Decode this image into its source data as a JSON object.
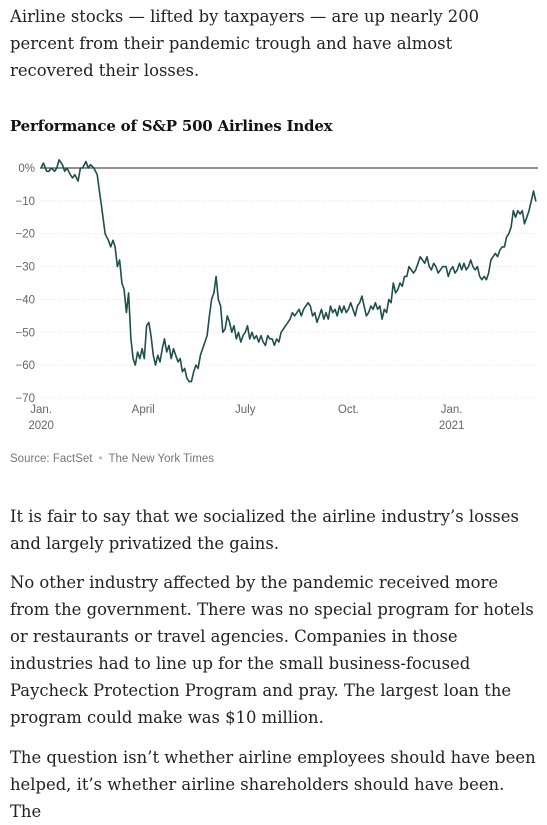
{
  "paragraphs": {
    "intro": "Airline stocks — lifted by taxpayers — are up nearly 200 percent from their pandemic trough and have almost recovered their losses.",
    "p1": "It is fair to say that we socialized the airline industry’s losses and largely privatized the gains.",
    "p2": "No other industry affected by the pandemic received more from the government. There was no special program for hotels or restaurants or travel agencies. Companies in those industries had to line up for the small business-focused Paycheck Protection Program and pray. The largest loan the program could make was $10 million.",
    "p3": "The question isn’t whether airline employees should have been helped, it’s whether airline shareholders should have been. The"
  },
  "credits": {
    "source": "Source: FactSet",
    "publisher": "The New York Times"
  },
  "chart_data": {
    "type": "line",
    "title": "Performance of S&P 500 Airlines Index",
    "xlabel": "",
    "ylabel": "",
    "ylim": [
      -70,
      0
    ],
    "y_ticks": [
      {
        "value": 0,
        "label": "0%"
      },
      {
        "value": -10,
        "label": "−10"
      },
      {
        "value": -20,
        "label": "−20"
      },
      {
        "value": -30,
        "label": "−30"
      },
      {
        "value": -40,
        "label": "−40"
      },
      {
        "value": -50,
        "label": "−50"
      },
      {
        "value": -60,
        "label": "−60"
      },
      {
        "value": -70,
        "label": "−70"
      }
    ],
    "x_ticks": [
      {
        "date": "2020-01-01",
        "label": "Jan.",
        "sublabel": "2020"
      },
      {
        "date": "2020-04-01",
        "label": "April",
        "sublabel": ""
      },
      {
        "date": "2020-07-01",
        "label": "July",
        "sublabel": ""
      },
      {
        "date": "2020-10-01",
        "label": "Oct.",
        "sublabel": ""
      },
      {
        "date": "2021-01-01",
        "label": "Jan.",
        "sublabel": "2021"
      }
    ],
    "xlim": [
      "2019-12-31",
      "2021-03-19"
    ],
    "grid": "horizontal",
    "zero_line": true,
    "line_color": "#1e4f4b",
    "series": [
      {
        "values": [
          {
            "x": "2020-01-01",
            "y": 0
          },
          {
            "x": "2020-01-03",
            "y": 1.5
          },
          {
            "x": "2020-01-06",
            "y": -1
          },
          {
            "x": "2020-01-08",
            "y": -1
          },
          {
            "x": "2020-01-10",
            "y": 0
          },
          {
            "x": "2020-01-13",
            "y": -1
          },
          {
            "x": "2020-01-15",
            "y": 0
          },
          {
            "x": "2020-01-17",
            "y": 2.5
          },
          {
            "x": "2020-01-20",
            "y": 1
          },
          {
            "x": "2020-01-22",
            "y": -1
          },
          {
            "x": "2020-01-24",
            "y": 0
          },
          {
            "x": "2020-01-27",
            "y": -2
          },
          {
            "x": "2020-01-29",
            "y": -3
          },
          {
            "x": "2020-01-31",
            "y": -2
          },
          {
            "x": "2020-02-03",
            "y": -4
          },
          {
            "x": "2020-02-05",
            "y": 0
          },
          {
            "x": "2020-02-07",
            "y": 0
          },
          {
            "x": "2020-02-10",
            "y": 2
          },
          {
            "x": "2020-02-12",
            "y": 0
          },
          {
            "x": "2020-02-14",
            "y": 1
          },
          {
            "x": "2020-02-17",
            "y": 0
          },
          {
            "x": "2020-02-20",
            "y": -2
          },
          {
            "x": "2020-02-22",
            "y": -7
          },
          {
            "x": "2020-02-24",
            "y": -12
          },
          {
            "x": "2020-02-27",
            "y": -20
          },
          {
            "x": "2020-03-01",
            "y": -22
          },
          {
            "x": "2020-03-03",
            "y": -24
          },
          {
            "x": "2020-03-05",
            "y": -22
          },
          {
            "x": "2020-03-07",
            "y": -24
          },
          {
            "x": "2020-03-09",
            "y": -30
          },
          {
            "x": "2020-03-11",
            "y": -28
          },
          {
            "x": "2020-03-13",
            "y": -35
          },
          {
            "x": "2020-03-15",
            "y": -37
          },
          {
            "x": "2020-03-17",
            "y": -44
          },
          {
            "x": "2020-03-19",
            "y": -38
          },
          {
            "x": "2020-03-21",
            "y": -52
          },
          {
            "x": "2020-03-23",
            "y": -58
          },
          {
            "x": "2020-03-25",
            "y": -60
          },
          {
            "x": "2020-03-27",
            "y": -56
          },
          {
            "x": "2020-03-29",
            "y": -58
          },
          {
            "x": "2020-03-31",
            "y": -55
          },
          {
            "x": "2020-04-02",
            "y": -58
          },
          {
            "x": "2020-04-04",
            "y": -48
          },
          {
            "x": "2020-04-06",
            "y": -47
          },
          {
            "x": "2020-04-08",
            "y": -51
          },
          {
            "x": "2020-04-10",
            "y": -57
          },
          {
            "x": "2020-04-12",
            "y": -60
          },
          {
            "x": "2020-04-14",
            "y": -57
          },
          {
            "x": "2020-04-16",
            "y": -59
          },
          {
            "x": "2020-04-18",
            "y": -55
          },
          {
            "x": "2020-04-20",
            "y": -52
          },
          {
            "x": "2020-04-22",
            "y": -56
          },
          {
            "x": "2020-04-24",
            "y": -54
          },
          {
            "x": "2020-04-26",
            "y": -58
          },
          {
            "x": "2020-04-28",
            "y": -55
          },
          {
            "x": "2020-04-30",
            "y": -57
          },
          {
            "x": "2020-05-02",
            "y": -59
          },
          {
            "x": "2020-05-04",
            "y": -58
          },
          {
            "x": "2020-05-06",
            "y": -62
          },
          {
            "x": "2020-05-08",
            "y": -61
          },
          {
            "x": "2020-05-10",
            "y": -64
          },
          {
            "x": "2020-05-12",
            "y": -65
          },
          {
            "x": "2020-05-14",
            "y": -65
          },
          {
            "x": "2020-05-16",
            "y": -62
          },
          {
            "x": "2020-05-18",
            "y": -60
          },
          {
            "x": "2020-05-20",
            "y": -61
          },
          {
            "x": "2020-05-22",
            "y": -57
          },
          {
            "x": "2020-05-24",
            "y": -55
          },
          {
            "x": "2020-05-26",
            "y": -53
          },
          {
            "x": "2020-05-28",
            "y": -51
          },
          {
            "x": "2020-05-30",
            "y": -45
          },
          {
            "x": "2020-06-01",
            "y": -40
          },
          {
            "x": "2020-06-03",
            "y": -38
          },
          {
            "x": "2020-06-05",
            "y": -33
          },
          {
            "x": "2020-06-07",
            "y": -40
          },
          {
            "x": "2020-06-09",
            "y": -42
          },
          {
            "x": "2020-06-11",
            "y": -50
          },
          {
            "x": "2020-06-13",
            "y": -49
          },
          {
            "x": "2020-06-15",
            "y": -45
          },
          {
            "x": "2020-06-17",
            "y": -47
          },
          {
            "x": "2020-06-19",
            "y": -50
          },
          {
            "x": "2020-06-21",
            "y": -48
          },
          {
            "x": "2020-06-23",
            "y": -52
          },
          {
            "x": "2020-06-25",
            "y": -50
          },
          {
            "x": "2020-06-27",
            "y": -53
          },
          {
            "x": "2020-06-29",
            "y": -51
          },
          {
            "x": "2020-07-01",
            "y": -50
          },
          {
            "x": "2020-07-03",
            "y": -48
          },
          {
            "x": "2020-07-05",
            "y": -52
          },
          {
            "x": "2020-07-07",
            "y": -50
          },
          {
            "x": "2020-07-09",
            "y": -52
          },
          {
            "x": "2020-07-11",
            "y": -51
          },
          {
            "x": "2020-07-13",
            "y": -53
          },
          {
            "x": "2020-07-15",
            "y": -51
          },
          {
            "x": "2020-07-17",
            "y": -53
          },
          {
            "x": "2020-07-19",
            "y": -54
          },
          {
            "x": "2020-07-21",
            "y": -51
          },
          {
            "x": "2020-07-23",
            "y": -52
          },
          {
            "x": "2020-07-25",
            "y": -52
          },
          {
            "x": "2020-07-27",
            "y": -54
          },
          {
            "x": "2020-07-29",
            "y": -52
          },
          {
            "x": "2020-07-31",
            "y": -53
          },
          {
            "x": "2020-08-02",
            "y": -50
          },
          {
            "x": "2020-08-04",
            "y": -49
          },
          {
            "x": "2020-08-06",
            "y": -48
          },
          {
            "x": "2020-08-08",
            "y": -47
          },
          {
            "x": "2020-08-10",
            "y": -46
          },
          {
            "x": "2020-08-12",
            "y": -44
          },
          {
            "x": "2020-08-14",
            "y": -45
          },
          {
            "x": "2020-08-16",
            "y": -44
          },
          {
            "x": "2020-08-18",
            "y": -43
          },
          {
            "x": "2020-08-20",
            "y": -45
          },
          {
            "x": "2020-08-22",
            "y": -43
          },
          {
            "x": "2020-08-24",
            "y": -42
          },
          {
            "x": "2020-08-26",
            "y": -41
          },
          {
            "x": "2020-08-28",
            "y": -42
          },
          {
            "x": "2020-08-30",
            "y": -45
          },
          {
            "x": "2020-09-01",
            "y": -44
          },
          {
            "x": "2020-09-03",
            "y": -47
          },
          {
            "x": "2020-09-05",
            "y": -45
          },
          {
            "x": "2020-09-07",
            "y": -43
          },
          {
            "x": "2020-09-09",
            "y": -46
          },
          {
            "x": "2020-09-11",
            "y": -44
          },
          {
            "x": "2020-09-13",
            "y": -46
          },
          {
            "x": "2020-09-15",
            "y": -42
          },
          {
            "x": "2020-09-17",
            "y": -44
          },
          {
            "x": "2020-09-19",
            "y": -43
          },
          {
            "x": "2020-09-21",
            "y": -45
          },
          {
            "x": "2020-09-23",
            "y": -42
          },
          {
            "x": "2020-09-25",
            "y": -44
          },
          {
            "x": "2020-09-27",
            "y": -42
          },
          {
            "x": "2020-09-29",
            "y": -44
          },
          {
            "x": "2020-10-01",
            "y": -43
          },
          {
            "x": "2020-10-03",
            "y": -41
          },
          {
            "x": "2020-10-05",
            "y": -43
          },
          {
            "x": "2020-10-07",
            "y": -45
          },
          {
            "x": "2020-10-09",
            "y": -42
          },
          {
            "x": "2020-10-11",
            "y": -41
          },
          {
            "x": "2020-10-13",
            "y": -39
          },
          {
            "x": "2020-10-15",
            "y": -42
          },
          {
            "x": "2020-10-17",
            "y": -45
          },
          {
            "x": "2020-10-19",
            "y": -44
          },
          {
            "x": "2020-10-21",
            "y": -42
          },
          {
            "x": "2020-10-23",
            "y": -43
          },
          {
            "x": "2020-10-25",
            "y": -41
          },
          {
            "x": "2020-10-27",
            "y": -43
          },
          {
            "x": "2020-10-29",
            "y": -42
          },
          {
            "x": "2020-10-31",
            "y": -46
          },
          {
            "x": "2020-11-02",
            "y": -43
          },
          {
            "x": "2020-11-04",
            "y": -44
          },
          {
            "x": "2020-11-06",
            "y": -40
          },
          {
            "x": "2020-11-08",
            "y": -41
          },
          {
            "x": "2020-11-10",
            "y": -35
          },
          {
            "x": "2020-11-12",
            "y": -38
          },
          {
            "x": "2020-11-14",
            "y": -37
          },
          {
            "x": "2020-11-16",
            "y": -35
          },
          {
            "x": "2020-11-18",
            "y": -36
          },
          {
            "x": "2020-11-20",
            "y": -33
          },
          {
            "x": "2020-11-22",
            "y": -33
          },
          {
            "x": "2020-11-24",
            "y": -30
          },
          {
            "x": "2020-11-26",
            "y": -31
          },
          {
            "x": "2020-11-28",
            "y": -32
          },
          {
            "x": "2020-11-30",
            "y": -31
          },
          {
            "x": "2020-12-02",
            "y": -29
          },
          {
            "x": "2020-12-04",
            "y": -27
          },
          {
            "x": "2020-12-06",
            "y": -28
          },
          {
            "x": "2020-12-08",
            "y": -29
          },
          {
            "x": "2020-12-10",
            "y": -27
          },
          {
            "x": "2020-12-12",
            "y": -30
          },
          {
            "x": "2020-12-14",
            "y": -31
          },
          {
            "x": "2020-12-16",
            "y": -29
          },
          {
            "x": "2020-12-18",
            "y": -30
          },
          {
            "x": "2020-12-20",
            "y": -32
          },
          {
            "x": "2020-12-22",
            "y": -31
          },
          {
            "x": "2020-12-24",
            "y": -30
          },
          {
            "x": "2020-12-27",
            "y": -30
          },
          {
            "x": "2020-12-29",
            "y": -33
          },
          {
            "x": "2020-12-31",
            "y": -31
          },
          {
            "x": "2021-01-02",
            "y": -30
          },
          {
            "x": "2021-01-04",
            "y": -32
          },
          {
            "x": "2021-01-06",
            "y": -31
          },
          {
            "x": "2021-01-08",
            "y": -29
          },
          {
            "x": "2021-01-10",
            "y": -31
          },
          {
            "x": "2021-01-12",
            "y": -29
          },
          {
            "x": "2021-01-14",
            "y": -31
          },
          {
            "x": "2021-01-16",
            "y": -30
          },
          {
            "x": "2021-01-18",
            "y": -28
          },
          {
            "x": "2021-01-20",
            "y": -30
          },
          {
            "x": "2021-01-22",
            "y": -31
          },
          {
            "x": "2021-01-24",
            "y": -30
          },
          {
            "x": "2021-01-26",
            "y": -33
          },
          {
            "x": "2021-01-28",
            "y": -34
          },
          {
            "x": "2021-01-30",
            "y": -33
          },
          {
            "x": "2021-02-01",
            "y": -34
          },
          {
            "x": "2021-02-03",
            "y": -32
          },
          {
            "x": "2021-02-05",
            "y": -28
          },
          {
            "x": "2021-02-07",
            "y": -27
          },
          {
            "x": "2021-02-09",
            "y": -26
          },
          {
            "x": "2021-02-11",
            "y": -27
          },
          {
            "x": "2021-02-13",
            "y": -25
          },
          {
            "x": "2021-02-15",
            "y": -24
          },
          {
            "x": "2021-02-17",
            "y": -24
          },
          {
            "x": "2021-02-19",
            "y": -21
          },
          {
            "x": "2021-02-21",
            "y": -20
          },
          {
            "x": "2021-02-23",
            "y": -18
          },
          {
            "x": "2021-02-25",
            "y": -13
          },
          {
            "x": "2021-02-27",
            "y": -15
          },
          {
            "x": "2021-03-01",
            "y": -13
          },
          {
            "x": "2021-03-03",
            "y": -14
          },
          {
            "x": "2021-03-05",
            "y": -13
          },
          {
            "x": "2021-03-07",
            "y": -17
          },
          {
            "x": "2021-03-09",
            "y": -15
          },
          {
            "x": "2021-03-11",
            "y": -13
          },
          {
            "x": "2021-03-13",
            "y": -10
          },
          {
            "x": "2021-03-15",
            "y": -7
          },
          {
            "x": "2021-03-17",
            "y": -10
          }
        ]
      }
    ]
  }
}
